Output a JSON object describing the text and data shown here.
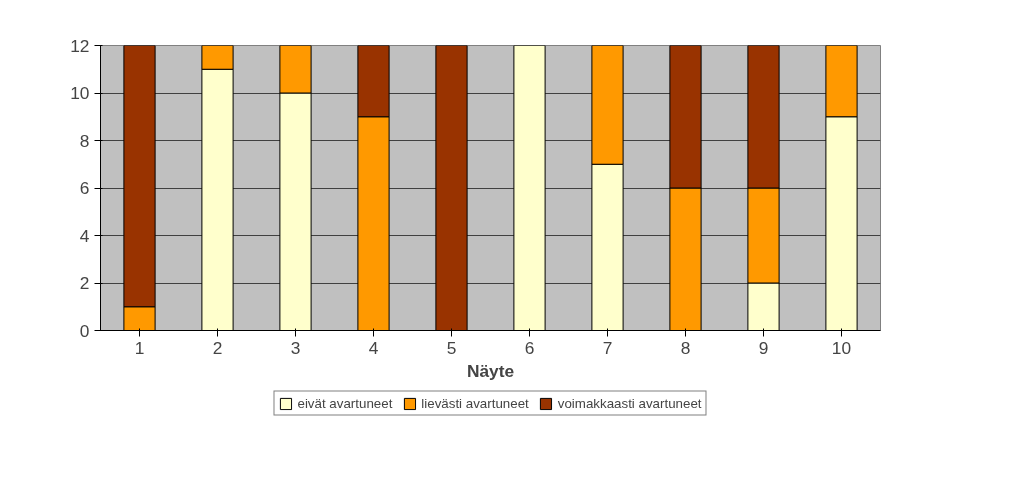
{
  "chart_data": {
    "type": "bar",
    "stacked": true,
    "xlabel": "Näyte",
    "categories": [
      "1",
      "2",
      "3",
      "4",
      "5",
      "6",
      "7",
      "8",
      "9",
      "10"
    ],
    "series": [
      {
        "name": "eivät avartuneet",
        "color": "#ffffcc",
        "values": [
          0,
          11,
          10,
          0,
          0,
          12,
          7,
          0,
          2,
          9
        ]
      },
      {
        "name": "lievästi avartuneet",
        "color": "#ff9900",
        "values": [
          1,
          1,
          2,
          9,
          0,
          0,
          5,
          6,
          4,
          3
        ]
      },
      {
        "name": "voimakkaasti avartuneet",
        "color": "#993300",
        "values": [
          11,
          0,
          0,
          3,
          12,
          0,
          0,
          6,
          6,
          0
        ]
      }
    ],
    "ylim": [
      0,
      12
    ],
    "yticks": [
      0,
      2,
      4,
      6,
      8,
      10,
      12
    ],
    "grid": "y",
    "legend": "bottom"
  }
}
